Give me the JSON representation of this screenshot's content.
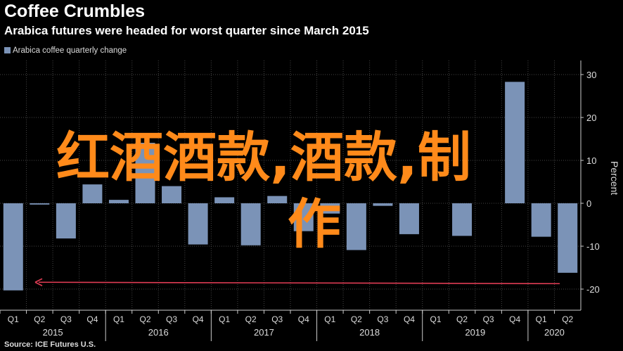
{
  "chart_data": {
    "type": "bar",
    "title": "Coffee Crumbles",
    "subtitle": "Arabica futures were headed for worst quarter since March 2015",
    "ylabel": "Percent",
    "ylim": [
      -24,
      31
    ],
    "yticks": [
      30,
      20,
      10,
      0,
      -10,
      -20
    ],
    "ytick_labels": [
      "30",
      "20",
      "10",
      "0",
      "-10",
      "-20"
    ],
    "grid": true,
    "series": [
      {
        "name": "Arabica coffee quarterly change",
        "color": "#7b93b7",
        "values": [
          -20.3,
          -0.3,
          -8.2,
          4.4,
          0.8,
          14.1,
          4.0,
          -9.6,
          1.4,
          -9.8,
          1.7,
          -6.5,
          -2.4,
          -10.9,
          -0.6,
          -7.2,
          -7.6,
          28.3,
          -7.8,
          -16.2
        ]
      }
    ],
    "quarters": [
      "Q1",
      "Q2",
      "Q3",
      "Q4",
      "Q1",
      "Q2",
      "Q3",
      "Q4",
      "Q1",
      "Q2",
      "Q3",
      "Q4",
      "Q1",
      "Q2",
      "Q3",
      "Q4",
      "Q1",
      "Q4",
      "Q1",
      "Q2"
    ],
    "quarter_labels": [
      "Q1",
      "Q2",
      "Q3",
      "Q4",
      "Q1",
      "Q2",
      "Q3",
      "Q4",
      "Q1",
      "Q2",
      "Q3",
      "Q4",
      "Q1",
      "Q2",
      "Q3",
      "Q4",
      "Q1",
      "Q2",
      "Q3",
      "Q4",
      "Q1",
      "Q2"
    ],
    "years": [
      "2015",
      "2016",
      "2017",
      "2018",
      "2019",
      "2020"
    ],
    "reference_line": {
      "value": -18.4,
      "color": "#e03c54"
    }
  },
  "legend": {
    "label": "Arabica coffee quarterly change",
    "color": "#7b93b7"
  },
  "source": "Source: ICE Futures U.S.",
  "watermark": "红酒酒款,酒款,制作",
  "colors": {
    "background": "#000000",
    "grid": "#444444",
    "axis": "#cccccc",
    "watermark": "#ff8a1a"
  }
}
